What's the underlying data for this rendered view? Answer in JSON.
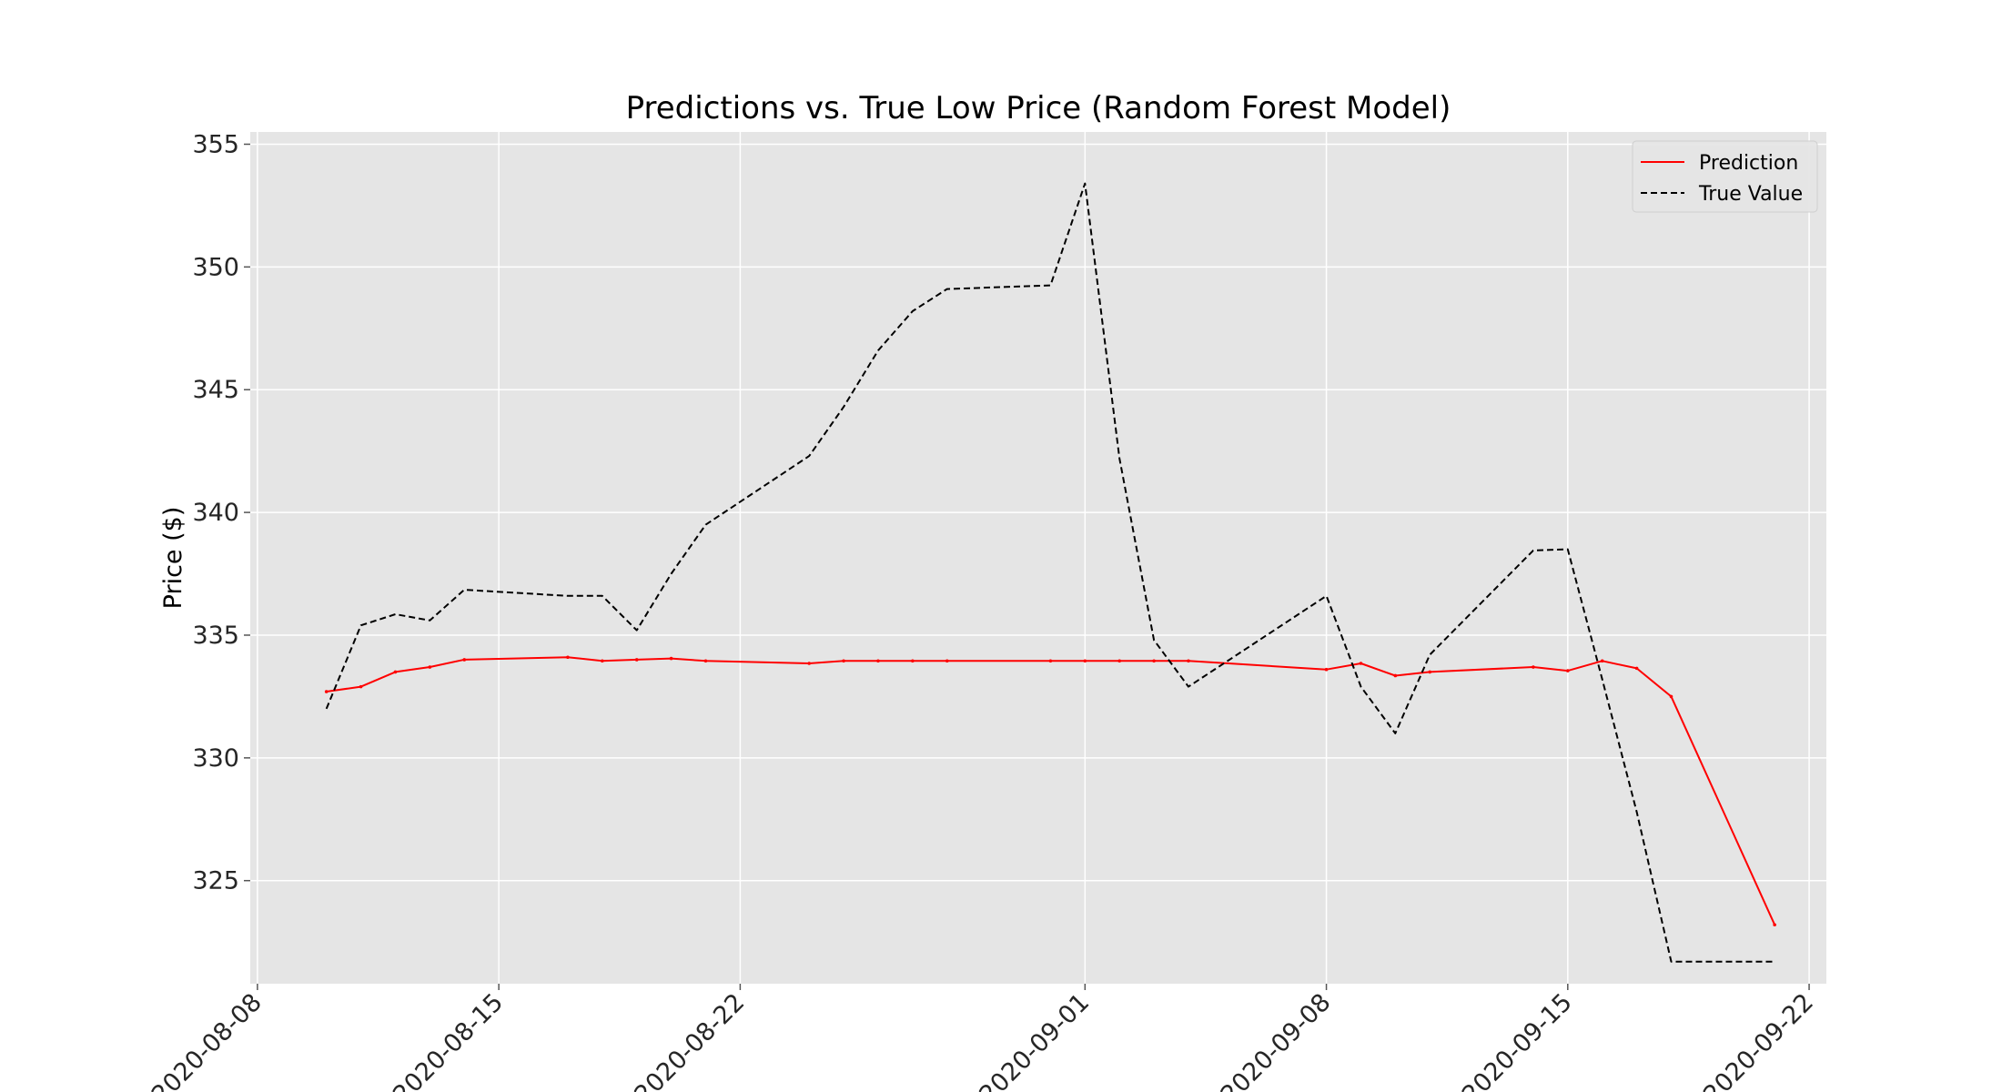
{
  "chart_data": {
    "type": "line",
    "title": "Predictions vs. True Low Price (Random Forest Model)",
    "xlabel": "",
    "ylabel": "Price ($)",
    "xlim": [
      "2020-08-07T19:00",
      "2020-09-22T12:00"
    ],
    "ylim": [
      320.8,
      355.5
    ],
    "x_ticks": [
      "2020-08-08",
      "2020-08-15",
      "2020-08-22",
      "2020-09-01",
      "2020-09-08",
      "2020-09-15",
      "2020-09-22"
    ],
    "y_ticks": [
      325,
      330,
      335,
      340,
      345,
      350,
      355
    ],
    "grid": true,
    "legend_position": "top-right",
    "series": [
      {
        "name": "Prediction",
        "color": "#ff0000",
        "style": "solid",
        "x": [
          "2020-08-10",
          "2020-08-11",
          "2020-08-12",
          "2020-08-13",
          "2020-08-14",
          "2020-08-17",
          "2020-08-18",
          "2020-08-19",
          "2020-08-20",
          "2020-08-21",
          "2020-08-24",
          "2020-08-25",
          "2020-08-26",
          "2020-08-27",
          "2020-08-28",
          "2020-08-31",
          "2020-09-01",
          "2020-09-02",
          "2020-09-03",
          "2020-09-04",
          "2020-09-08",
          "2020-09-09",
          "2020-09-10",
          "2020-09-11",
          "2020-09-14",
          "2020-09-15",
          "2020-09-16",
          "2020-09-17",
          "2020-09-18",
          "2020-09-21"
        ],
        "values": [
          332.7,
          332.9,
          333.5,
          333.7,
          334.0,
          334.1,
          333.95,
          334.0,
          334.05,
          333.95,
          333.85,
          333.95,
          333.95,
          333.95,
          333.95,
          333.95,
          333.95,
          333.95,
          333.95,
          333.95,
          333.6,
          333.85,
          333.35,
          333.5,
          333.7,
          333.55,
          333.95,
          333.65,
          332.5,
          323.2
        ]
      },
      {
        "name": "True Value",
        "color": "#000000",
        "style": "dashed",
        "x": [
          "2020-08-10",
          "2020-08-11",
          "2020-08-12",
          "2020-08-13",
          "2020-08-14",
          "2020-08-17",
          "2020-08-18",
          "2020-08-19",
          "2020-08-20",
          "2020-08-21",
          "2020-08-24",
          "2020-08-25",
          "2020-08-26",
          "2020-08-27",
          "2020-08-28",
          "2020-08-31",
          "2020-09-01",
          "2020-09-02",
          "2020-09-03",
          "2020-09-04",
          "2020-09-08",
          "2020-09-09",
          "2020-09-10",
          "2020-09-11",
          "2020-09-14",
          "2020-09-15",
          "2020-09-16",
          "2020-09-17",
          "2020-09-18",
          "2020-09-21"
        ],
        "values": [
          332.0,
          335.4,
          335.85,
          335.6,
          336.85,
          336.6,
          336.6,
          335.2,
          337.5,
          339.5,
          342.3,
          344.3,
          346.6,
          348.2,
          349.1,
          349.25,
          353.4,
          342.2,
          334.8,
          332.9,
          336.6,
          332.9,
          331.0,
          334.2,
          338.45,
          338.5,
          333.2,
          327.8,
          321.7,
          321.7
        ]
      }
    ]
  }
}
